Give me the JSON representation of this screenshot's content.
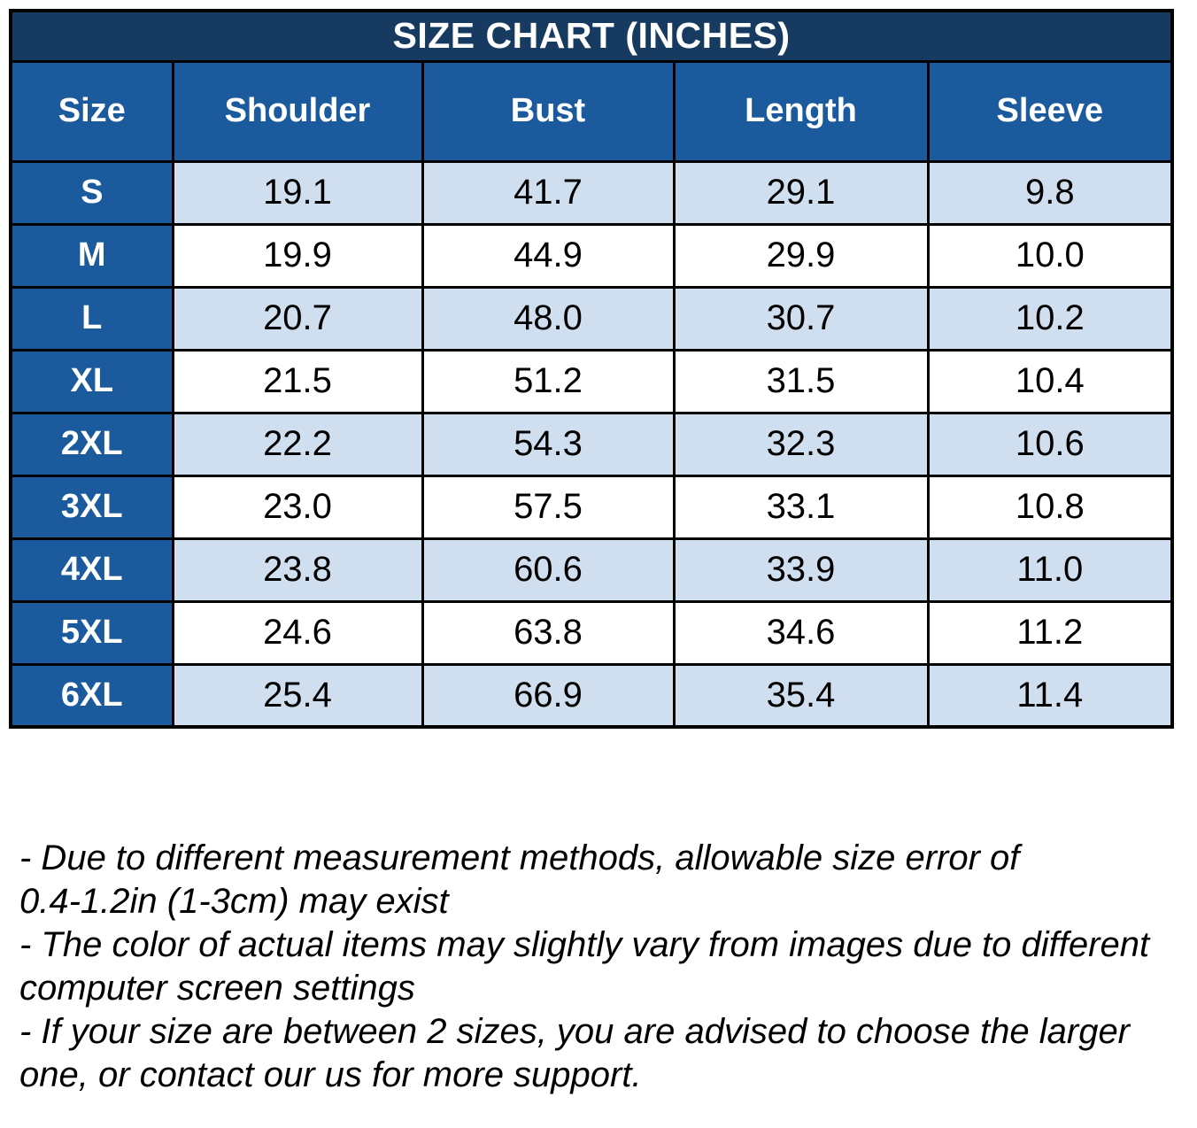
{
  "colors": {
    "title_bg": "#173A60",
    "header_bg": "#1B5A9D",
    "stripe_light": "#CFDFEF",
    "stripe_white": "#FFFFFF",
    "border": "#000000",
    "header_text": "#FFFFFF",
    "value_text": "#000000"
  },
  "table": {
    "title": "SIZE CHART (INCHES)",
    "columns": [
      "Size",
      "Shoulder",
      "Bust",
      "Length",
      "Sleeve"
    ],
    "column_keys": [
      "size",
      "shoulder",
      "bust",
      "length",
      "sleeve"
    ],
    "rows": [
      {
        "size": "S",
        "shoulder": "19.1",
        "bust": "41.7",
        "length": "29.1",
        "sleeve": "9.8"
      },
      {
        "size": "M",
        "shoulder": "19.9",
        "bust": "44.9",
        "length": "29.9",
        "sleeve": "10.0"
      },
      {
        "size": "L",
        "shoulder": "20.7",
        "bust": "48.0",
        "length": "30.7",
        "sleeve": "10.2"
      },
      {
        "size": "XL",
        "shoulder": "21.5",
        "bust": "51.2",
        "length": "31.5",
        "sleeve": "10.4"
      },
      {
        "size": "2XL",
        "shoulder": "22.2",
        "bust": "54.3",
        "length": "32.3",
        "sleeve": "10.6"
      },
      {
        "size": "3XL",
        "shoulder": "23.0",
        "bust": "57.5",
        "length": "33.1",
        "sleeve": "10.8"
      },
      {
        "size": "4XL",
        "shoulder": "23.8",
        "bust": "60.6",
        "length": "33.9",
        "sleeve": "11.0"
      },
      {
        "size": "5XL",
        "shoulder": "24.6",
        "bust": "63.8",
        "length": "34.6",
        "sleeve": "11.2"
      },
      {
        "size": "6XL",
        "shoulder": "25.4",
        "bust": "66.9",
        "length": "35.4",
        "sleeve": "11.4"
      }
    ]
  },
  "notes": {
    "lines": [
      "- Due to different measurement methods, allowable size error of",
      "0.4-1.2in (1-3cm) may exist",
      "- The color of actual items may slightly vary from images due to different",
      "computer screen settings",
      "- If your size are between 2 sizes, you are advised to choose the larger",
      "one, or contact our us for more support."
    ]
  }
}
